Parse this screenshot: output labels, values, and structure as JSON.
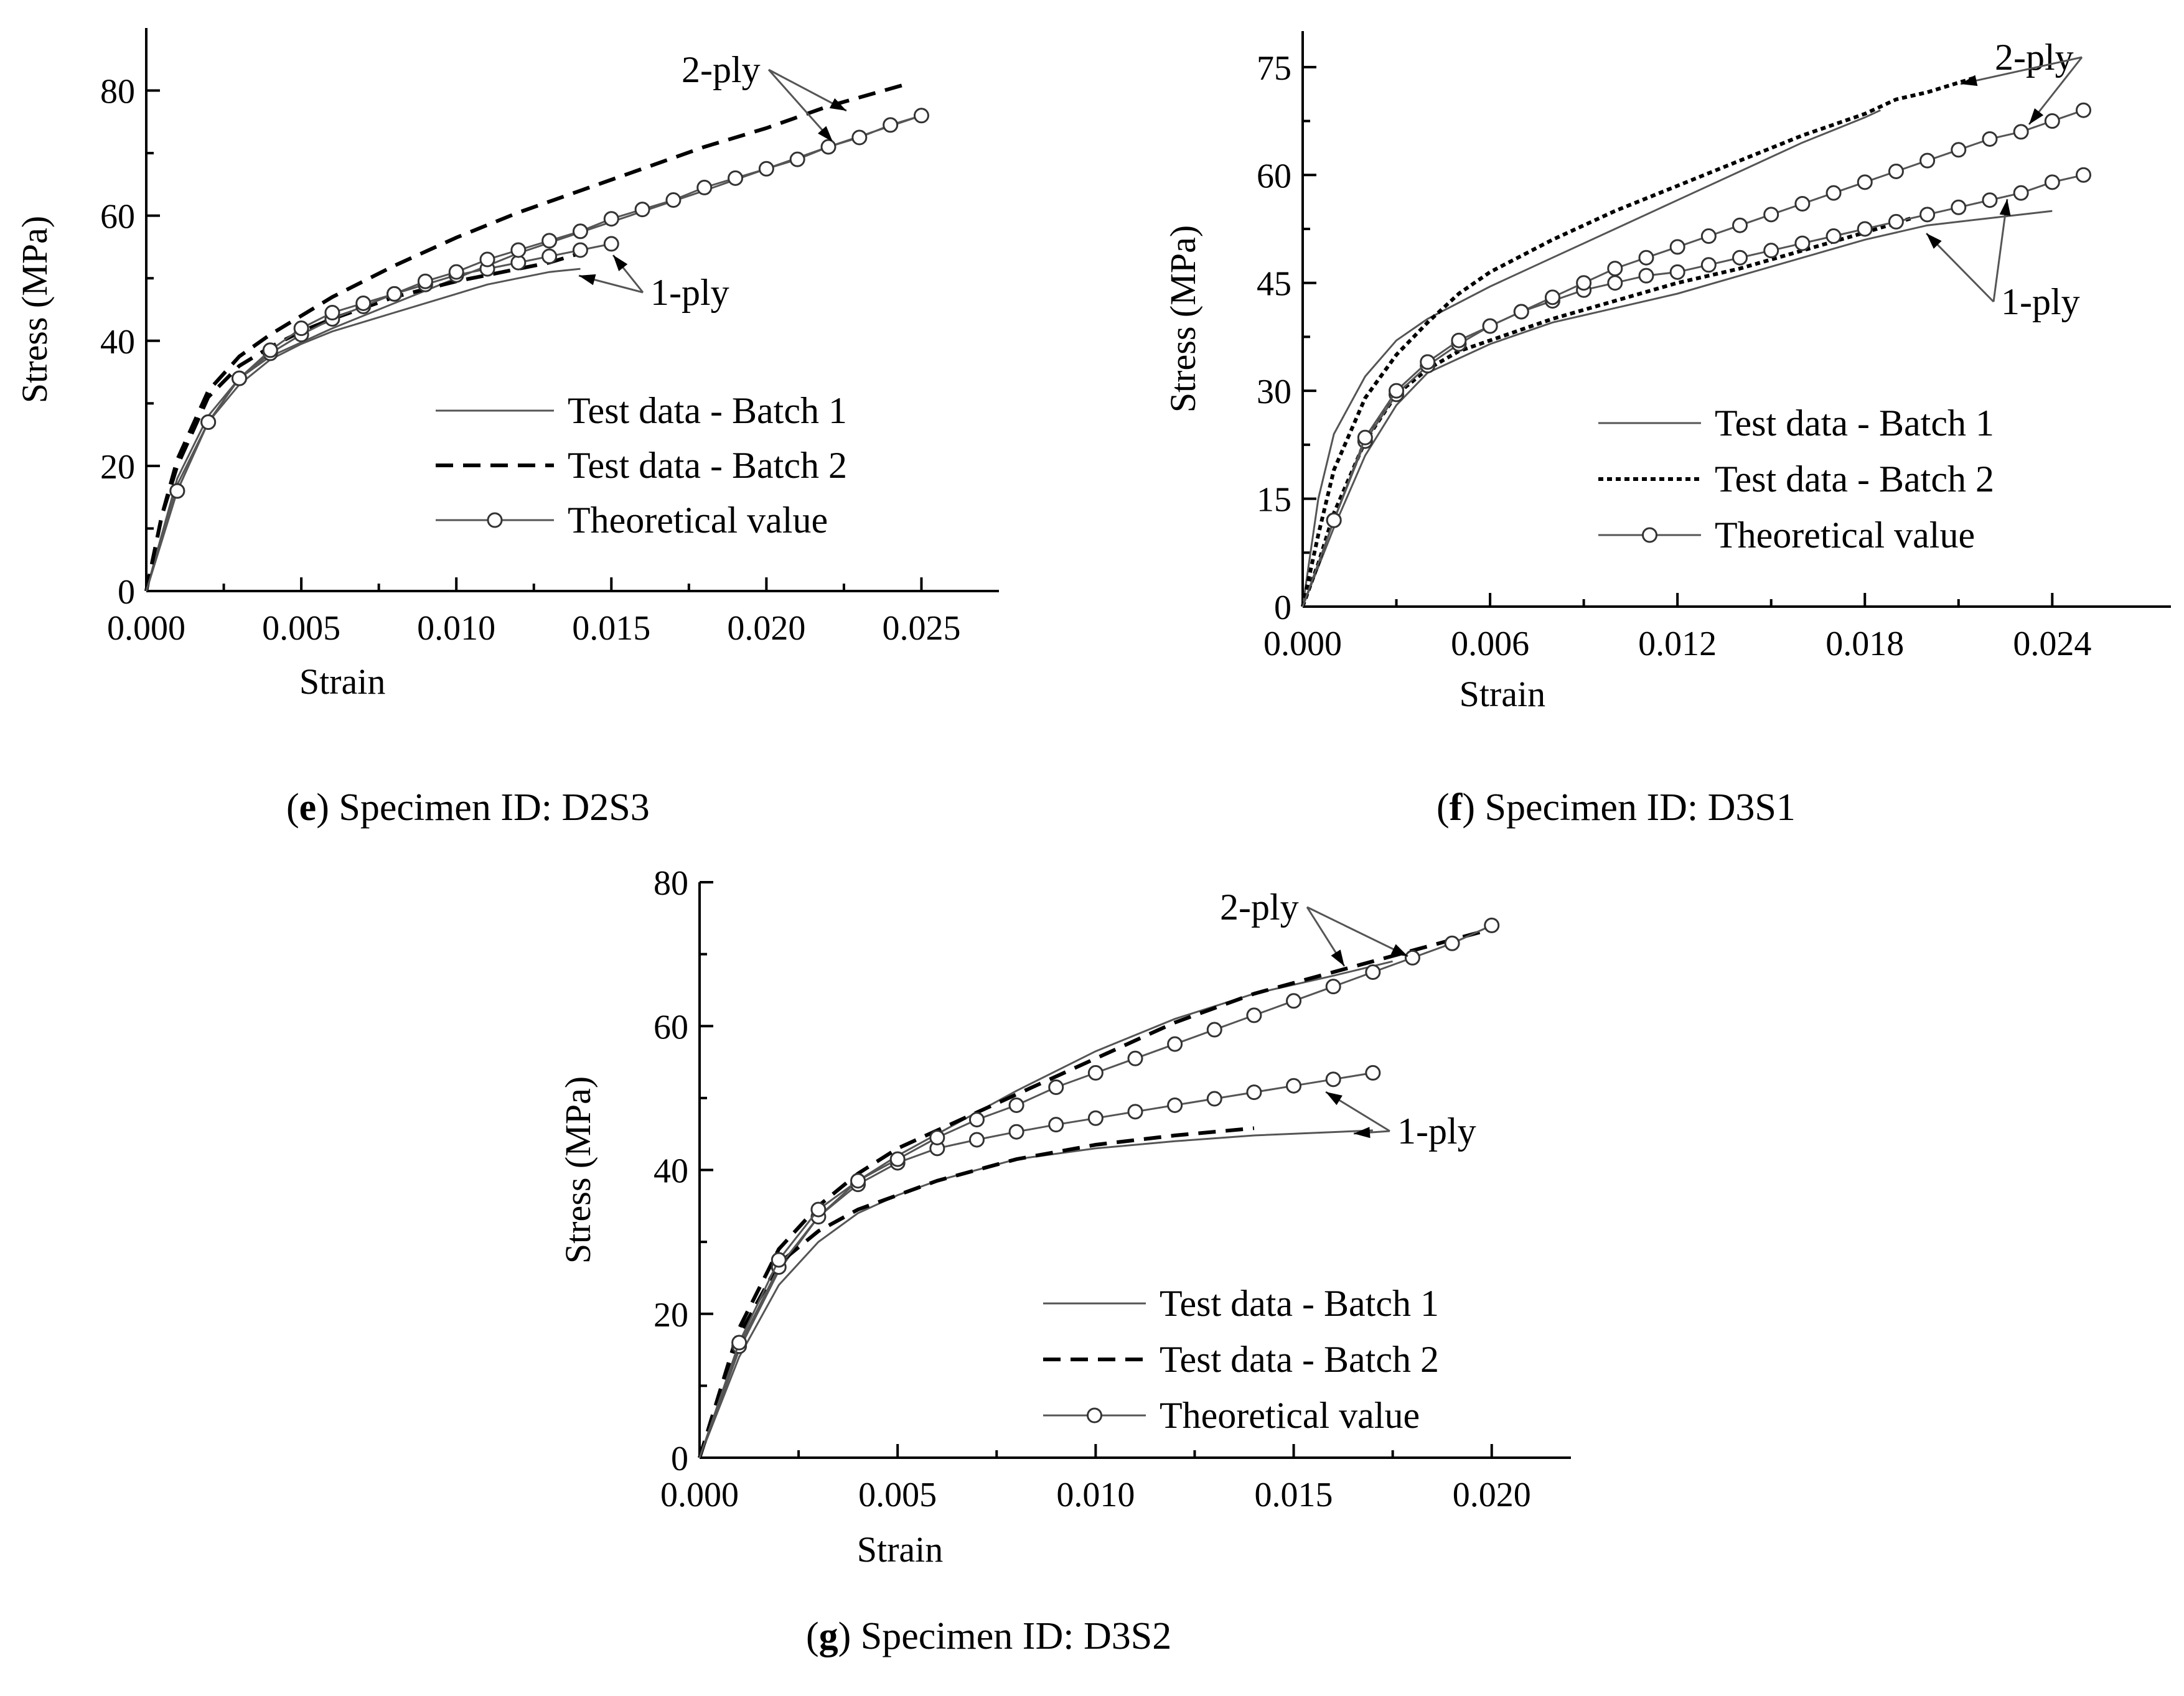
{
  "figure": {
    "captions": [
      {
        "letter": "e",
        "prefix": "(",
        "suffix": ") Specimen ID: D2S3"
      },
      {
        "letter": "f",
        "prefix": "(",
        "suffix": ") Specimen ID: D3S1"
      },
      {
        "letter": "g",
        "prefix": "(",
        "suffix": ") Specimen ID: D3S2"
      }
    ]
  },
  "chart_data": [
    {
      "id": "e",
      "type": "line",
      "title": "(e) Specimen ID: D2S3",
      "xlabel": "Strain",
      "ylabel": "Stress (MPa)",
      "xlim": [
        0,
        0.0275
      ],
      "ylim": [
        0,
        90
      ],
      "xticks": [
        0,
        0.005,
        0.01,
        0.015,
        0.02,
        0.025
      ],
      "xtick_labels": [
        "0.000",
        "0.005",
        "0.010",
        "0.015",
        "0.020",
        "0.025"
      ],
      "yticks": [
        0,
        20,
        40,
        60,
        80
      ],
      "ytick_labels": [
        "0",
        "20",
        "40",
        "60",
        "80"
      ],
      "legend": [
        "Test data - Batch 1",
        "Test data - Batch 2",
        "Theoretical value"
      ],
      "annotations": [
        "2-ply",
        "1-ply"
      ],
      "series": [
        {
          "name": "Test data - Batch 1",
          "style": "thin",
          "x": [
            0,
            0.0005,
            0.001,
            0.002,
            0.003,
            0.004,
            0.005,
            0.006,
            0.008,
            0.01,
            0.011,
            0.012,
            0.013,
            0.014
          ],
          "y": [
            0,
            9,
            17,
            27,
            33,
            37,
            39.5,
            41.5,
            44.5,
            47.5,
            49,
            50,
            51,
            51.5
          ]
        },
        {
          "name": "Test data - Batch 1",
          "style": "thin",
          "x": [
            0,
            0.001,
            0.002,
            0.003,
            0.004,
            0.006,
            0.008,
            0.01,
            0.012,
            0.015,
            0.018,
            0.02,
            0.022,
            0.025
          ],
          "y": [
            0,
            18,
            28,
            34,
            37.5,
            42,
            46,
            50,
            54,
            59,
            64,
            67.5,
            71,
            76
          ]
        },
        {
          "name": "Test data - Batch 2",
          "style": "dash",
          "x": [
            0,
            0.0005,
            0.001,
            0.002,
            0.003,
            0.004,
            0.005,
            0.006,
            0.008,
            0.01,
            0.012,
            0.013,
            0.014
          ],
          "y": [
            0,
            12,
            20,
            31,
            36,
            39,
            41.5,
            43.5,
            47,
            49.5,
            51.5,
            52.5,
            54
          ]
        },
        {
          "name": "Test data - Batch 2",
          "style": "dash",
          "x": [
            0,
            0.0005,
            0.001,
            0.002,
            0.003,
            0.004,
            0.005,
            0.006,
            0.007,
            0.008,
            0.01,
            0.012,
            0.014,
            0.016,
            0.018,
            0.02,
            0.022,
            0.0245
          ],
          "y": [
            0,
            12,
            21,
            32,
            37.5,
            41,
            44,
            47,
            49.5,
            52,
            56.5,
            60.5,
            64,
            67.5,
            71,
            74,
            77.5,
            81
          ]
        },
        {
          "name": "Theoretical value",
          "style": "theory",
          "x": [
            0,
            0.001,
            0.002,
            0.003,
            0.004,
            0.005,
            0.006,
            0.007,
            0.008,
            0.009,
            0.01,
            0.011,
            0.012,
            0.013,
            0.014,
            0.015
          ],
          "y": [
            0,
            16,
            27,
            34,
            38,
            41,
            43.5,
            45.5,
            47.5,
            49,
            50.5,
            51.5,
            52.5,
            53.5,
            54.5,
            55.5
          ]
        },
        {
          "name": "Theoretical value",
          "style": "theory",
          "x": [
            0,
            0.001,
            0.002,
            0.003,
            0.004,
            0.005,
            0.006,
            0.007,
            0.008,
            0.009,
            0.01,
            0.011,
            0.012,
            0.013,
            0.014,
            0.015,
            0.016,
            0.017,
            0.018,
            0.019,
            0.02,
            0.021,
            0.022,
            0.023,
            0.024,
            0.025
          ],
          "y": [
            0,
            16,
            27,
            34,
            38.5,
            42,
            44.5,
            46,
            47.5,
            49.5,
            51,
            53,
            54.5,
            56,
            57.5,
            59.5,
            61,
            62.5,
            64.5,
            66,
            67.5,
            69,
            71,
            72.5,
            74.5,
            76
          ]
        }
      ]
    },
    {
      "id": "f",
      "type": "line",
      "title": "(f) Specimen ID: D3S1",
      "xlabel": "Strain",
      "ylabel": "Stress (MPa)",
      "xlim": [
        0,
        0.0278
      ],
      "ylim": [
        0,
        80
      ],
      "xticks": [
        0,
        0.006,
        0.012,
        0.018,
        0.024
      ],
      "xtick_labels": [
        "0.000",
        "0.006",
        "0.012",
        "0.018",
        "0.024"
      ],
      "yticks": [
        0,
        15,
        30,
        45,
        60,
        75
      ],
      "ytick_labels": [
        "0",
        "15",
        "30",
        "45",
        "60",
        "75"
      ],
      "legend": [
        "Test data - Batch 1",
        "Test data - Batch 2",
        "Theoretical value"
      ],
      "annotations": [
        "2-ply",
        "1-ply"
      ],
      "series": [
        {
          "name": "Test data - Batch 1",
          "style": "thin",
          "x": [
            0,
            0.0005,
            0.001,
            0.002,
            0.003,
            0.004,
            0.006,
            0.008,
            0.01,
            0.012,
            0.014,
            0.016,
            0.018,
            0.0185
          ],
          "y": [
            0,
            15,
            24,
            32,
            37,
            40,
            44.5,
            48.5,
            52.5,
            56.5,
            60.5,
            64.5,
            68,
            69
          ]
        },
        {
          "name": "Test data - Batch 1",
          "style": "thin",
          "x": [
            0,
            0.001,
            0.002,
            0.003,
            0.004,
            0.006,
            0.008,
            0.01,
            0.012,
            0.014,
            0.016,
            0.018,
            0.02,
            0.022,
            0.024
          ],
          "y": [
            0,
            11,
            21,
            28,
            32.5,
            36.5,
            39.5,
            41.5,
            43.5,
            46,
            48.5,
            51,
            53,
            54,
            55
          ]
        },
        {
          "name": "Test data - Batch 2",
          "style": "dot",
          "x": [
            0,
            0.0005,
            0.001,
            0.002,
            0.003,
            0.004,
            0.005,
            0.006,
            0.008,
            0.01,
            0.012,
            0.014,
            0.016,
            0.018,
            0.019,
            0.02,
            0.0215
          ],
          "y": [
            0,
            10,
            19,
            29,
            35,
            39.5,
            43.5,
            46.5,
            51,
            55,
            58.5,
            62,
            65.5,
            68.5,
            70.5,
            71.5,
            73.5
          ]
        },
        {
          "name": "Test data - Batch 2",
          "style": "dot",
          "x": [
            0,
            0.0005,
            0.001,
            0.002,
            0.003,
            0.004,
            0.005,
            0.006,
            0.008,
            0.01,
            0.012,
            0.014,
            0.016,
            0.018,
            0.0195
          ],
          "y": [
            0,
            6,
            13,
            23,
            29.5,
            33,
            35.5,
            37,
            40,
            42.5,
            45,
            47,
            49.5,
            52,
            54
          ]
        },
        {
          "name": "Theoretical value",
          "style": "theory",
          "x": [
            0,
            0.001,
            0.002,
            0.003,
            0.004,
            0.005,
            0.006,
            0.007,
            0.008,
            0.009,
            0.01,
            0.011,
            0.012,
            0.013,
            0.014,
            0.015,
            0.016,
            0.017,
            0.018,
            0.019,
            0.02,
            0.021,
            0.022,
            0.023,
            0.024,
            0.025
          ],
          "y": [
            0,
            12,
            23,
            29.5,
            33.5,
            36.5,
            39,
            41,
            42.5,
            44,
            45,
            46,
            46.5,
            47.5,
            48.5,
            49.5,
            50.5,
            51.5,
            52.5,
            53.5,
            54.5,
            55.5,
            56.5,
            57.5,
            59,
            60
          ]
        },
        {
          "name": "Theoretical value",
          "style": "theory",
          "x": [
            0,
            0.001,
            0.002,
            0.003,
            0.004,
            0.005,
            0.006,
            0.007,
            0.008,
            0.009,
            0.01,
            0.011,
            0.012,
            0.013,
            0.014,
            0.015,
            0.016,
            0.017,
            0.018,
            0.019,
            0.02,
            0.021,
            0.022,
            0.023,
            0.024,
            0.025
          ],
          "y": [
            0,
            12,
            23.5,
            30,
            34,
            37,
            39,
            41,
            43,
            45,
            47,
            48.5,
            50,
            51.5,
            53,
            54.5,
            56,
            57.5,
            59,
            60.5,
            62,
            63.5,
            65,
            66,
            67.5,
            69
          ]
        }
      ]
    },
    {
      "id": "g",
      "type": "line",
      "title": "(g) Specimen ID: D3S2",
      "xlabel": "Strain",
      "ylabel": "Stress (MPa)",
      "xlim": [
        0,
        0.022
      ],
      "ylim": [
        0,
        80
      ],
      "xticks": [
        0,
        0.005,
        0.01,
        0.015,
        0.02
      ],
      "xtick_labels": [
        "0.000",
        "0.005",
        "0.010",
        "0.015",
        "0.020"
      ],
      "yticks": [
        0,
        20,
        40,
        60,
        80
      ],
      "ytick_labels": [
        "0",
        "20",
        "40",
        "60",
        "80"
      ],
      "legend": [
        "Test data - Batch 1",
        "Test data - Batch 2",
        "Theoretical value"
      ],
      "annotations": [
        "2-ply",
        "1-ply"
      ],
      "series": [
        {
          "name": "Test data - Batch 1",
          "style": "thin",
          "x": [
            0,
            0.001,
            0.002,
            0.003,
            0.004,
            0.005,
            0.006,
            0.007,
            0.008,
            0.01,
            0.012,
            0.014,
            0.017
          ],
          "y": [
            0,
            14,
            24,
            30,
            34,
            36.5,
            38.5,
            40,
            41.5,
            43,
            44,
            44.8,
            45.5
          ]
        },
        {
          "name": "Test data - Batch 1",
          "style": "thin",
          "x": [
            0,
            0.001,
            0.002,
            0.003,
            0.004,
            0.005,
            0.006,
            0.008,
            0.01,
            0.012,
            0.014,
            0.016,
            0.0175
          ],
          "y": [
            0,
            15,
            26,
            33.5,
            38.5,
            42,
            45,
            51,
            56.5,
            61,
            64.5,
            67,
            69
          ]
        },
        {
          "name": "Test data - Batch 2",
          "style": "dash",
          "x": [
            0,
            0.001,
            0.002,
            0.003,
            0.004,
            0.005,
            0.006,
            0.007,
            0.008,
            0.01,
            0.012,
            0.014
          ],
          "y": [
            0,
            17,
            27,
            31.5,
            34.5,
            36.5,
            38.5,
            40,
            41.5,
            43.5,
            44.8,
            45.8
          ]
        },
        {
          "name": "Test data - Batch 2",
          "style": "dash",
          "x": [
            0,
            0.001,
            0.002,
            0.003,
            0.004,
            0.005,
            0.006,
            0.007,
            0.008,
            0.01,
            0.012,
            0.014,
            0.016,
            0.018,
            0.02
          ],
          "y": [
            0,
            18,
            29,
            35,
            39.5,
            43,
            45.5,
            48,
            50.5,
            55.5,
            60.5,
            64.5,
            67.5,
            70.5,
            73.5
          ]
        },
        {
          "name": "Theoretical value",
          "style": "theory",
          "x": [
            0,
            0.001,
            0.002,
            0.003,
            0.004,
            0.005,
            0.006,
            0.007,
            0.008,
            0.009,
            0.01,
            0.011,
            0.012,
            0.013,
            0.014,
            0.015,
            0.016,
            0.017
          ],
          "y": [
            0,
            15.5,
            26.5,
            33.5,
            38,
            41,
            43,
            44.2,
            45.3,
            46.3,
            47.2,
            48.1,
            49,
            49.9,
            50.8,
            51.7,
            52.6,
            53.5
          ]
        },
        {
          "name": "Theoretical value",
          "style": "theory",
          "x": [
            0,
            0.001,
            0.002,
            0.003,
            0.004,
            0.005,
            0.006,
            0.007,
            0.008,
            0.009,
            0.01,
            0.011,
            0.012,
            0.013,
            0.014,
            0.015,
            0.016,
            0.017,
            0.018,
            0.019,
            0.02
          ],
          "y": [
            0,
            16,
            27.5,
            34.5,
            38.5,
            41.5,
            44.5,
            47,
            49,
            51.5,
            53.5,
            55.5,
            57.5,
            59.5,
            61.5,
            63.5,
            65.5,
            67.5,
            69.5,
            71.5,
            74
          ]
        }
      ]
    }
  ]
}
